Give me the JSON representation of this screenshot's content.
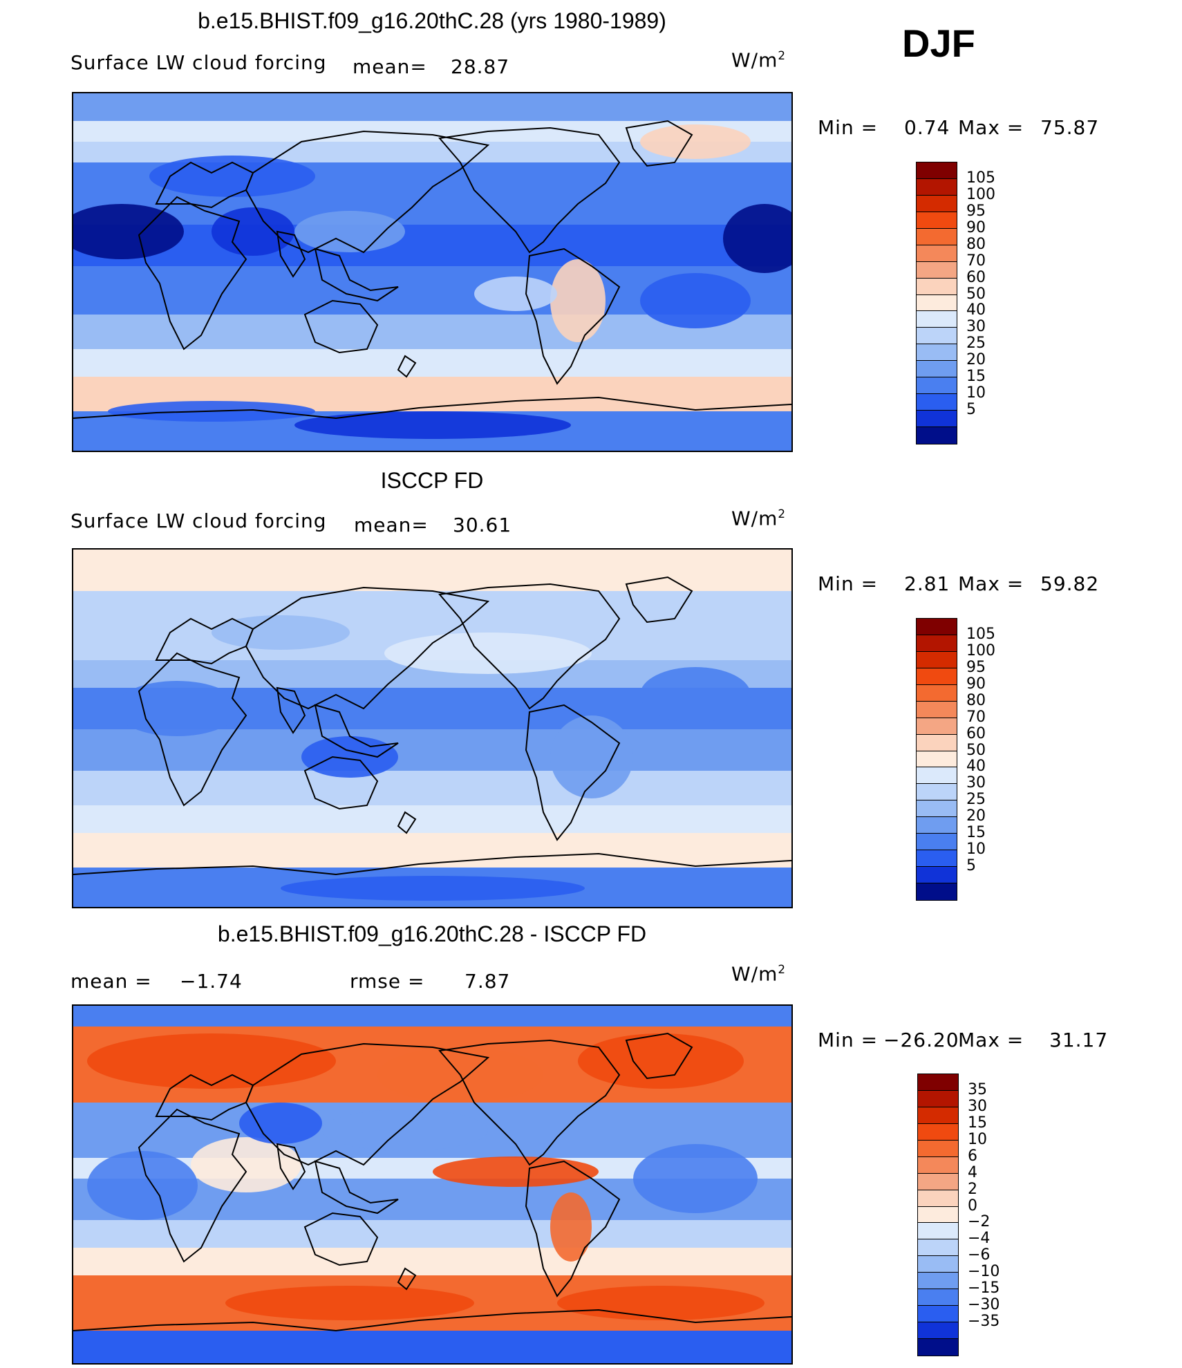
{
  "season": "DJF",
  "units_base": "W/m",
  "units_exp": "2",
  "panels": [
    {
      "id": "model",
      "title": "b.e15.BHIST.f09_g16.20thC.28 (yrs 1980-1989)",
      "left_label": "Surface LW cloud forcing",
      "mean_label": "mean=",
      "mean_value": "28.87",
      "min_label": "Min =",
      "min_value": "0.74",
      "max_label": "Max =",
      "max_value": "75.87",
      "colorbar": {
        "levels": [
          "105",
          "100",
          "95",
          "90",
          "80",
          "70",
          "60",
          "50",
          "40",
          "30",
          "25",
          "20",
          "15",
          "10",
          "5"
        ],
        "colors": [
          "#7f0000",
          "#b31500",
          "#d42b00",
          "#f04a10",
          "#f36a30",
          "#f4885a",
          "#f4a684",
          "#fbd3bd",
          "#fdebdd",
          "#dbe9fb",
          "#bcd4f9",
          "#99bcf4",
          "#6f9df0",
          "#4a7ff0",
          "#2a5ef0",
          "#1033d8",
          "#000e8a"
        ]
      }
    },
    {
      "id": "obs",
      "title": "ISCCP FD",
      "left_label": "Surface LW cloud forcing",
      "mean_label": "mean=",
      "mean_value": "30.61",
      "min_label": "Min =",
      "min_value": "2.81",
      "max_label": "Max =",
      "max_value": "59.82",
      "colorbar": {
        "levels": [
          "105",
          "100",
          "95",
          "90",
          "80",
          "70",
          "60",
          "50",
          "40",
          "30",
          "25",
          "20",
          "15",
          "10",
          "5"
        ],
        "colors": [
          "#7f0000",
          "#b31500",
          "#d42b00",
          "#f04a10",
          "#f36a30",
          "#f4885a",
          "#f4a684",
          "#fbd3bd",
          "#fdebdd",
          "#dbe9fb",
          "#bcd4f9",
          "#99bcf4",
          "#6f9df0",
          "#4a7ff0",
          "#2a5ef0",
          "#1033d8",
          "#000e8a"
        ]
      }
    },
    {
      "id": "diff",
      "title": "b.e15.BHIST.f09_g16.20thC.28 - ISCCP FD",
      "left_label": "mean =",
      "mean_value": "−1.74",
      "rmse_label": "rmse =",
      "rmse_value": "7.87",
      "min_label": "Min =",
      "min_value": "−26.20",
      "max_label": "Max =",
      "max_value": "31.17",
      "colorbar": {
        "levels": [
          "35",
          "30",
          "15",
          "10",
          "6",
          "4",
          "2",
          "0",
          "−2",
          "−4",
          "−6",
          "−10",
          "−15",
          "−30",
          "−35"
        ],
        "colors": [
          "#7f0000",
          "#b31500",
          "#d42b00",
          "#f04a10",
          "#f36a30",
          "#f4885a",
          "#f4a684",
          "#fbd3bd",
          "#fdebdd",
          "#dbe9fb",
          "#bcd4f9",
          "#99bcf4",
          "#6f9df0",
          "#4a7ff0",
          "#2a5ef0",
          "#1033d8",
          "#000e8a"
        ]
      }
    }
  ]
}
